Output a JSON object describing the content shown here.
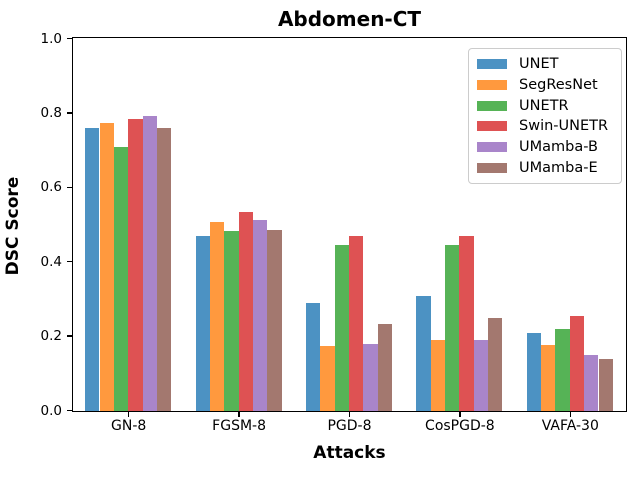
{
  "chart_data": {
    "type": "bar",
    "title": "Abdomen-CT",
    "xlabel": "Attacks",
    "ylabel": "DSC Score",
    "categories": [
      "GN-8",
      "FGSM-8",
      "PGD-8",
      "CosPGD-8",
      "VAFA-30"
    ],
    "series": [
      {
        "name": "UNET",
        "color": "#4C92C3",
        "values": [
          0.76,
          0.47,
          0.29,
          0.308,
          0.21
        ]
      },
      {
        "name": "SegResNet",
        "color": "#FF993E",
        "values": [
          0.774,
          0.507,
          0.174,
          0.19,
          0.177
        ]
      },
      {
        "name": "UNETR",
        "color": "#56B356",
        "values": [
          0.71,
          0.484,
          0.447,
          0.445,
          0.221
        ]
      },
      {
        "name": "Swin-UNETR",
        "color": "#DE5253",
        "values": [
          0.786,
          0.534,
          0.47,
          0.47,
          0.255
        ]
      },
      {
        "name": "UMamba-B",
        "color": "#A985CA",
        "values": [
          0.792,
          0.514,
          0.181,
          0.19,
          0.15
        ]
      },
      {
        "name": "UMamba-E",
        "color": "#A3786F",
        "values": [
          0.76,
          0.486,
          0.235,
          0.251,
          0.14
        ]
      }
    ],
    "ylim": [
      0.0,
      1.0
    ],
    "yticks": [
      0.0,
      0.2,
      0.4,
      0.6,
      0.8,
      1.0
    ],
    "grid": false,
    "legend_position": "upper right",
    "spine_color": "#000000",
    "legend_border_color": "#cccccc"
  }
}
